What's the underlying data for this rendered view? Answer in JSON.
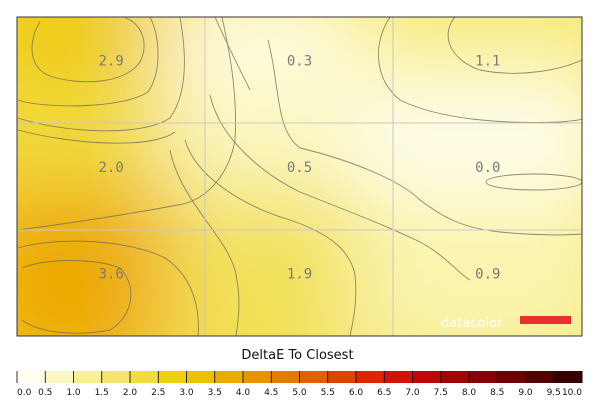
{
  "chart_data": {
    "type": "heatmap",
    "title": "DeltaE To Closest",
    "grid_rows": 3,
    "grid_cols": 3,
    "values": [
      [
        2.9,
        0.3,
        1.1
      ],
      [
        2.0,
        0.5,
        0.0
      ],
      [
        3.6,
        1.9,
        0.9
      ]
    ],
    "labels": [
      [
        "2.9",
        "0.3",
        "1.1"
      ],
      [
        "2.0",
        "0.5",
        "0.0"
      ],
      [
        "3.6",
        "1.9",
        "0.9"
      ]
    ],
    "scale_min": 0.0,
    "scale_max": 10.0,
    "scale_ticks": [
      "0.0",
      "0.5",
      "1.0",
      "1.5",
      "2.0",
      "2.5",
      "3.0",
      "3.5",
      "4.0",
      "4.5",
      "5.0",
      "5.5",
      "6.0",
      "6.5",
      "7.0",
      "7.5",
      "8.0",
      "8.5",
      "9.0",
      "9.5",
      "10.0"
    ],
    "scale_colors": [
      "#fffef0",
      "#fbf7c0",
      "#f8f092",
      "#f4e56c",
      "#f2dc3e",
      "#efcf12",
      "#eec000",
      "#edaa00",
      "#ea9300",
      "#e67a00",
      "#e26000",
      "#dd4400",
      "#d82800",
      "#cf1500",
      "#bd0900",
      "#a50300",
      "#8a0000",
      "#6f0000",
      "#540000",
      "#360000"
    ],
    "brand": "datacolor",
    "brand_color": "#e8312f"
  }
}
